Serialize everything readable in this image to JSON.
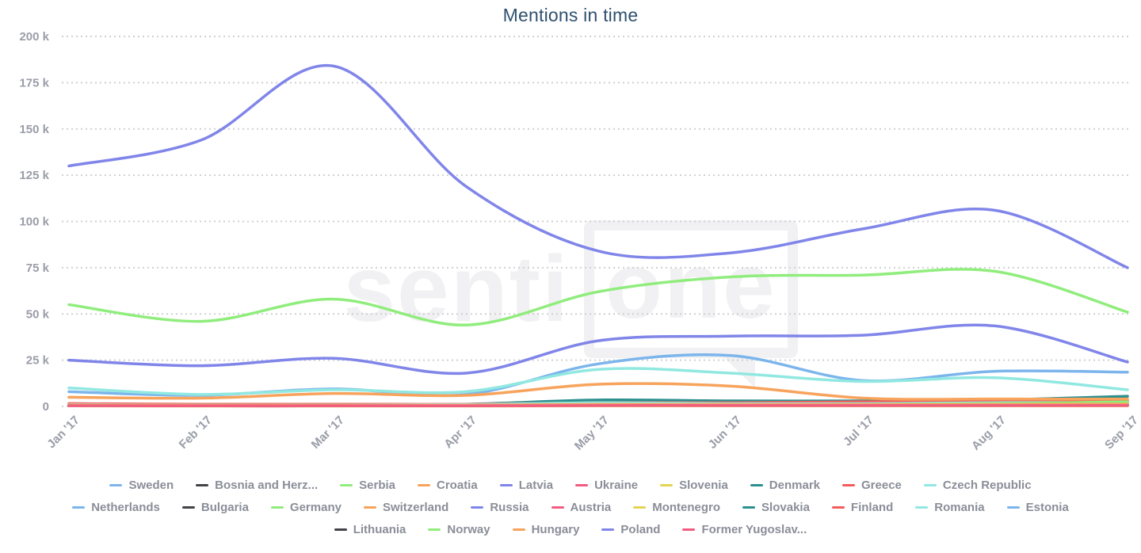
{
  "title": "Mentions in time",
  "watermark": {
    "prefix": "senti",
    "boxed": "one"
  },
  "colors": {
    "title_text": "#2f506e",
    "axis_label_text": "#9a9da8",
    "legend_text": "#8b8e99",
    "gridline": "#cfd0d2",
    "watermark": "#f1f1f3"
  },
  "axes": {
    "y_tick_values": [
      0,
      25000,
      50000,
      75000,
      100000,
      125000,
      150000,
      175000,
      200000
    ],
    "y_tick_labels": [
      "0",
      "25 k",
      "50 k",
      "75 k",
      "100 k",
      "125 k",
      "150 k",
      "175 k",
      "200 k"
    ],
    "x_tick_labels": [
      "Jan '17",
      "Feb '17",
      "Mar '17",
      "Apr '17",
      "May '17",
      "Jun '17",
      "Jul '17",
      "Aug '17",
      "Sep '17"
    ]
  },
  "legend": {
    "rows": [
      [
        {
          "label": "Sweden",
          "color": "#7cb5ec"
        },
        {
          "label": "Bosnia and Herz...",
          "color": "#434348"
        },
        {
          "label": "Serbia",
          "color": "#90ed7d"
        },
        {
          "label": "Croatia",
          "color": "#f7a35c"
        },
        {
          "label": "Latvia",
          "color": "#8085e9"
        },
        {
          "label": "Ukraine",
          "color": "#f15c80"
        },
        {
          "label": "Slovenia",
          "color": "#e4d354"
        },
        {
          "label": "Denmark",
          "color": "#2b908f"
        },
        {
          "label": "Greece",
          "color": "#f45b5b"
        },
        {
          "label": "Czech Republic",
          "color": "#91e8e1"
        }
      ],
      [
        {
          "label": "Netherlands",
          "color": "#7cb5ec"
        },
        {
          "label": "Bulgaria",
          "color": "#434348"
        },
        {
          "label": "Germany",
          "color": "#90ed7d"
        },
        {
          "label": "Switzerland",
          "color": "#f7a35c"
        },
        {
          "label": "Russia",
          "color": "#8085e9"
        },
        {
          "label": "Austria",
          "color": "#f15c80"
        },
        {
          "label": "Montenegro",
          "color": "#e4d354"
        },
        {
          "label": "Slovakia",
          "color": "#2b908f"
        },
        {
          "label": "Finland",
          "color": "#f45b5b"
        },
        {
          "label": "Romania",
          "color": "#91e8e1"
        },
        {
          "label": "Estonia",
          "color": "#7cb5ec"
        }
      ],
      [
        {
          "label": "Lithuania",
          "color": "#434348"
        },
        {
          "label": "Norway",
          "color": "#90ed7d"
        },
        {
          "label": "Hungary",
          "color": "#f7a35c"
        },
        {
          "label": "Poland",
          "color": "#8085e9"
        },
        {
          "label": "Former Yugoslav...",
          "color": "#f15c80"
        }
      ]
    ]
  },
  "chart_data": {
    "type": "line",
    "title": "Mentions in time",
    "xlabel": "",
    "ylabel": "",
    "ylim": [
      0,
      200000
    ],
    "y_tick_step": 25000,
    "grid": "horizontal dotted",
    "legend_position": "bottom",
    "line_style": "smooth spline, width 3.5",
    "categories": [
      "Jan '17",
      "Feb '17",
      "Mar '17",
      "Apr '17",
      "May '17",
      "Jun '17",
      "Jul '17",
      "Aug '17",
      "Sep '17"
    ],
    "series": [
      {
        "name": "Sweden",
        "color": "#7cb5ec",
        "values": [
          8000,
          6000,
          9500,
          6500,
          23000,
          27500,
          14000,
          19000,
          18500
        ]
      },
      {
        "name": "Bosnia and Herz...",
        "color": "#434348",
        "values": [
          400,
          400,
          400,
          400,
          600,
          600,
          600,
          700,
          800
        ]
      },
      {
        "name": "Serbia",
        "color": "#90ed7d",
        "values": [
          500,
          400,
          400,
          400,
          700,
          700,
          700,
          800,
          900
        ]
      },
      {
        "name": "Croatia",
        "color": "#f7a35c",
        "values": [
          900,
          800,
          800,
          800,
          1200,
          1200,
          1100,
          1100,
          1200
        ]
      },
      {
        "name": "Latvia",
        "color": "#8085e9",
        "values": [
          500,
          400,
          400,
          400,
          600,
          600,
          600,
          600,
          700
        ]
      },
      {
        "name": "Ukraine",
        "color": "#f15c80",
        "values": [
          1500,
          1000,
          1000,
          1000,
          1500,
          1500,
          1500,
          1200,
          800
        ]
      },
      {
        "name": "Slovenia",
        "color": "#e4d354",
        "values": [
          300,
          300,
          300,
          300,
          400,
          400,
          400,
          400,
          500
        ]
      },
      {
        "name": "Denmark",
        "color": "#2b908f",
        "values": [
          1200,
          1000,
          1000,
          1200,
          3500,
          3000,
          3000,
          3500,
          5500
        ]
      },
      {
        "name": "Greece",
        "color": "#f45b5b",
        "values": [
          1500,
          1200,
          1200,
          1200,
          2000,
          2000,
          2500,
          3000,
          3200
        ]
      },
      {
        "name": "Czech Republic",
        "color": "#91e8e1",
        "values": [
          10000,
          6500,
          9000,
          8000,
          20000,
          18000,
          13500,
          15500,
          9000
        ]
      },
      {
        "name": "Netherlands",
        "color": "#7cb5ec",
        "values": [
          700,
          600,
          600,
          600,
          900,
          900,
          900,
          1000,
          1100
        ]
      },
      {
        "name": "Bulgaria",
        "color": "#434348",
        "values": [
          400,
          300,
          300,
          300,
          500,
          500,
          500,
          500,
          600
        ]
      },
      {
        "name": "Germany",
        "color": "#90ed7d",
        "values": [
          55000,
          46000,
          58000,
          44000,
          62000,
          70000,
          71000,
          73000,
          51000
        ]
      },
      {
        "name": "Switzerland",
        "color": "#f7a35c",
        "values": [
          5000,
          4500,
          7000,
          6000,
          12000,
          11000,
          4500,
          4000,
          4000
        ]
      },
      {
        "name": "Russia",
        "color": "#8085e9",
        "values": [
          130000,
          144000,
          184000,
          119000,
          84000,
          83000,
          96000,
          106000,
          75000
        ]
      },
      {
        "name": "Austria",
        "color": "#f15c80",
        "values": [
          500,
          400,
          400,
          400,
          600,
          600,
          600,
          600,
          600
        ]
      },
      {
        "name": "Montenegro",
        "color": "#e4d354",
        "values": [
          300,
          200,
          200,
          200,
          300,
          300,
          300,
          300,
          400
        ]
      },
      {
        "name": "Slovakia",
        "color": "#2b908f",
        "values": [
          900,
          800,
          800,
          800,
          1400,
          1300,
          1300,
          1500,
          2200
        ]
      },
      {
        "name": "Finland",
        "color": "#f45b5b",
        "values": [
          1000,
          800,
          800,
          800,
          1500,
          1500,
          1800,
          2200,
          2600
        ]
      },
      {
        "name": "Romania",
        "color": "#91e8e1",
        "values": [
          1000,
          800,
          800,
          1000,
          2000,
          1500,
          1500,
          2000,
          2000
        ]
      },
      {
        "name": "Estonia",
        "color": "#7cb5ec",
        "values": [
          600,
          500,
          500,
          500,
          800,
          800,
          800,
          900,
          1000
        ]
      },
      {
        "name": "Lithuania",
        "color": "#434348",
        "values": [
          600,
          500,
          500,
          500,
          900,
          900,
          900,
          1000,
          1000
        ]
      },
      {
        "name": "Norway",
        "color": "#90ed7d",
        "values": [
          500,
          500,
          500,
          500,
          1000,
          1000,
          1000,
          1500,
          2500
        ]
      },
      {
        "name": "Hungary",
        "color": "#f7a35c",
        "values": [
          800,
          700,
          700,
          700,
          1100,
          1000,
          1000,
          1100,
          1300
        ]
      },
      {
        "name": "Poland",
        "color": "#8085e9",
        "values": [
          25000,
          22000,
          26000,
          18000,
          35500,
          38000,
          38500,
          43500,
          24000
        ]
      },
      {
        "name": "Former Yugoslav...",
        "color": "#f15c80",
        "values": [
          400,
          300,
          300,
          300,
          500,
          500,
          500,
          500,
          500
        ]
      }
    ]
  }
}
